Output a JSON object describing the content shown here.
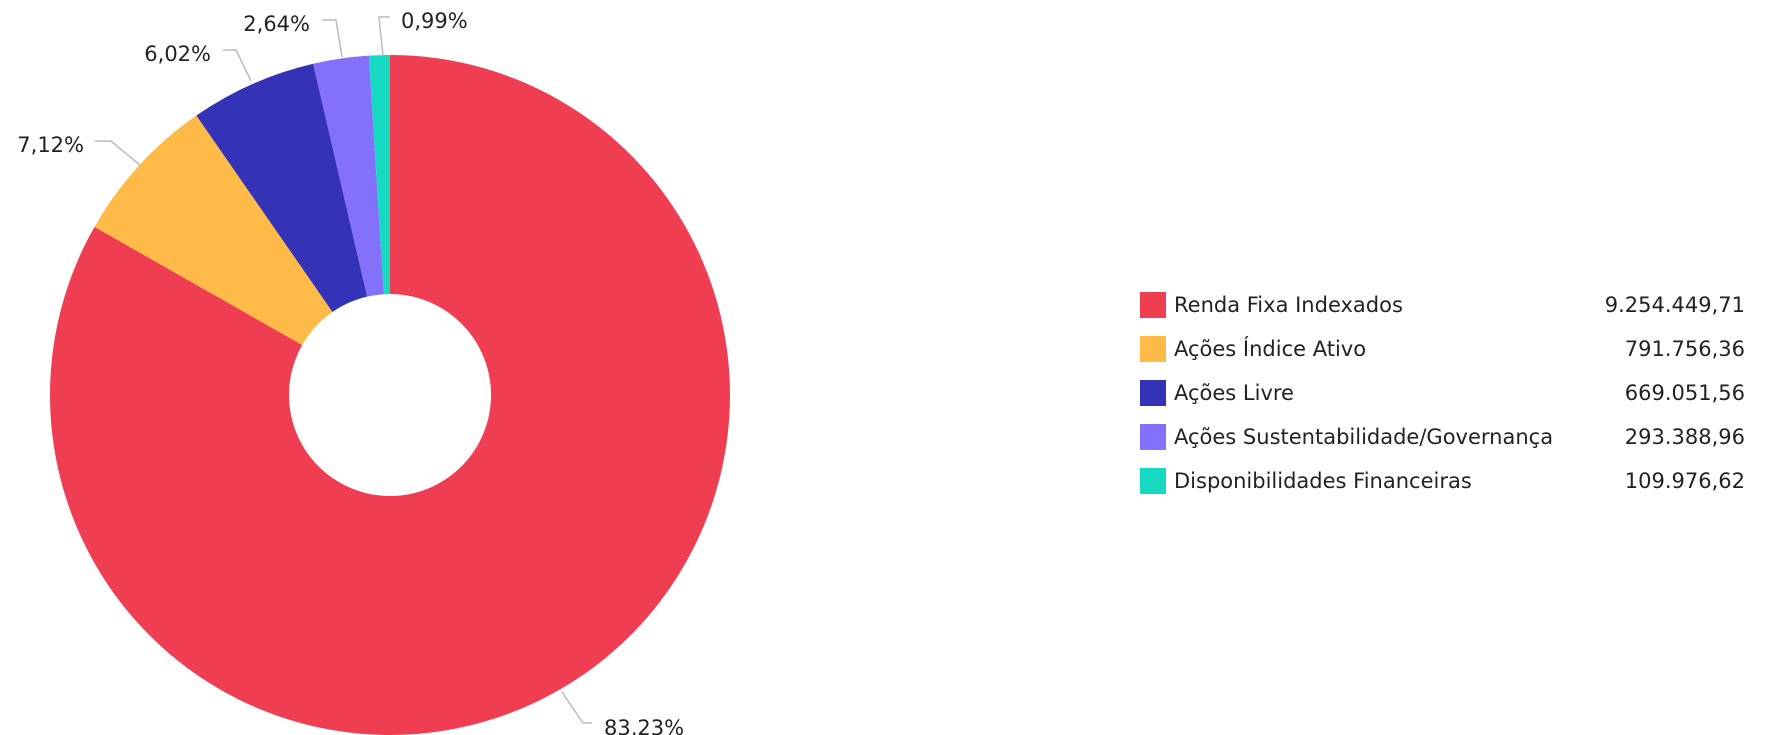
{
  "chart_data": {
    "type": "pie",
    "donut": true,
    "categories": [
      "Renda Fixa Indexados",
      "Ações Índice Ativo",
      "Ações Livre",
      "Ações Sustentabilidade/Governança",
      "Disponibilidades Financeiras"
    ],
    "values": [
      9254449.71,
      791756.36,
      669051.56,
      293388.96,
      109976.62
    ],
    "value_labels": [
      "9.254.449,71",
      "791.756,36",
      "669.051,56",
      "293.388,96",
      "109.976,62"
    ],
    "percent_labels": [
      "83,23%",
      "7,12%",
      "6,02%",
      "2,64%",
      "0,99%"
    ],
    "colors": [
      "#EF3E52",
      "#FFBA47",
      "#3433B7",
      "#8471FB",
      "#16D9C2"
    ],
    "legend_position": "right",
    "start_angle_degrees": 0,
    "direction": "clockwise"
  }
}
